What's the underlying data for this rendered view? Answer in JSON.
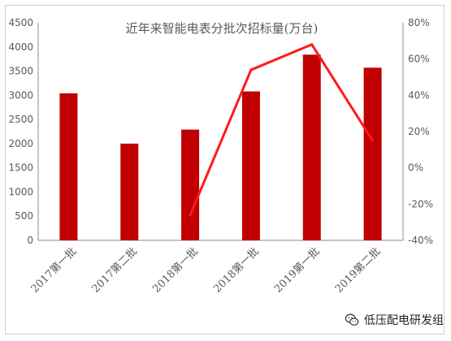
{
  "chart_data": {
    "type": "bar",
    "title": "近年来智能电表分批次招标量(万台)",
    "categories": [
      "2017第一批",
      "2017第二批",
      "2018第一批",
      "2018第一批",
      "2019第一批",
      "2019第二批"
    ],
    "series": [
      {
        "values": [
          3040,
          2000,
          2290,
          3080,
          3840,
          3570
        ],
        "axis": "left",
        "type": "bar"
      },
      {
        "values": [
          null,
          null,
          -26,
          54,
          68,
          15
        ],
        "axis": "right",
        "type": "line",
        "unit": "%"
      }
    ],
    "y_left": {
      "ylim": [
        0,
        4500
      ],
      "ticks": [
        "0",
        "500",
        "1000",
        "1500",
        "2000",
        "2500",
        "3000",
        "3500",
        "4000",
        "4500"
      ]
    },
    "y_right": {
      "ylim": [
        -40,
        80
      ],
      "ticks": [
        "-40%",
        "-20%",
        "0%",
        "20%",
        "40%",
        "60%",
        "80%"
      ]
    },
    "colors": {
      "bar": "#c00000",
      "line": "#ff1a1a",
      "axis": "#8c8c8c",
      "text": "#595959"
    },
    "grid": false,
    "legend": "none"
  },
  "watermark": {
    "icon": "wechat-icon",
    "text": "低压配电研发组"
  }
}
